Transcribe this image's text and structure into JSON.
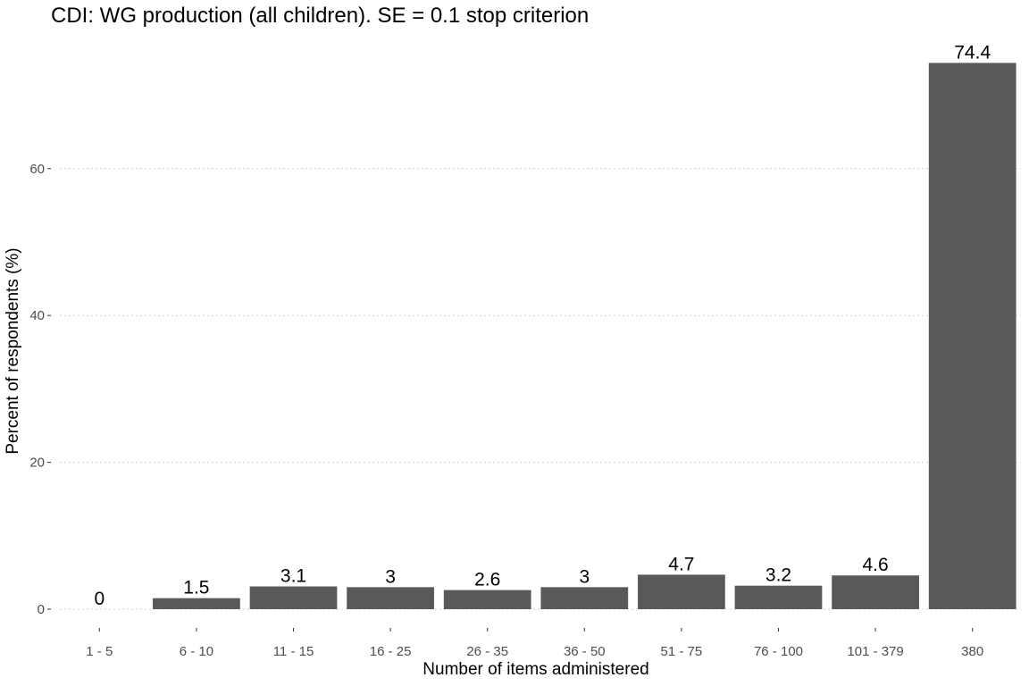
{
  "chart_data": {
    "type": "bar",
    "title": "CDI: WG production (all children). SE = 0.1 stop criterion",
    "xlabel": "Number of items administered",
    "ylabel": "Percent of respondents (%)",
    "categories": [
      "1 - 5",
      "6 - 10",
      "11 - 15",
      "16 - 25",
      "26 - 35",
      "36 - 50",
      "51 - 75",
      "76 - 100",
      "101 - 379",
      "380"
    ],
    "values": [
      0,
      1.5,
      3.1,
      3,
      2.6,
      3,
      4.7,
      3.2,
      4.6,
      74.4
    ],
    "data_labels": [
      "0",
      "1.5",
      "3.1",
      "3",
      "2.6",
      "3",
      "4.7",
      "3.2",
      "4.6",
      "74.4"
    ],
    "yticks": [
      0,
      20,
      40,
      60
    ],
    "ytick_labels": [
      "0",
      "20",
      "40",
      "60"
    ],
    "ylim": [
      -2.5,
      79
    ],
    "grid": "horizontal dotted",
    "bar_color": "#595959",
    "legend": "none"
  }
}
